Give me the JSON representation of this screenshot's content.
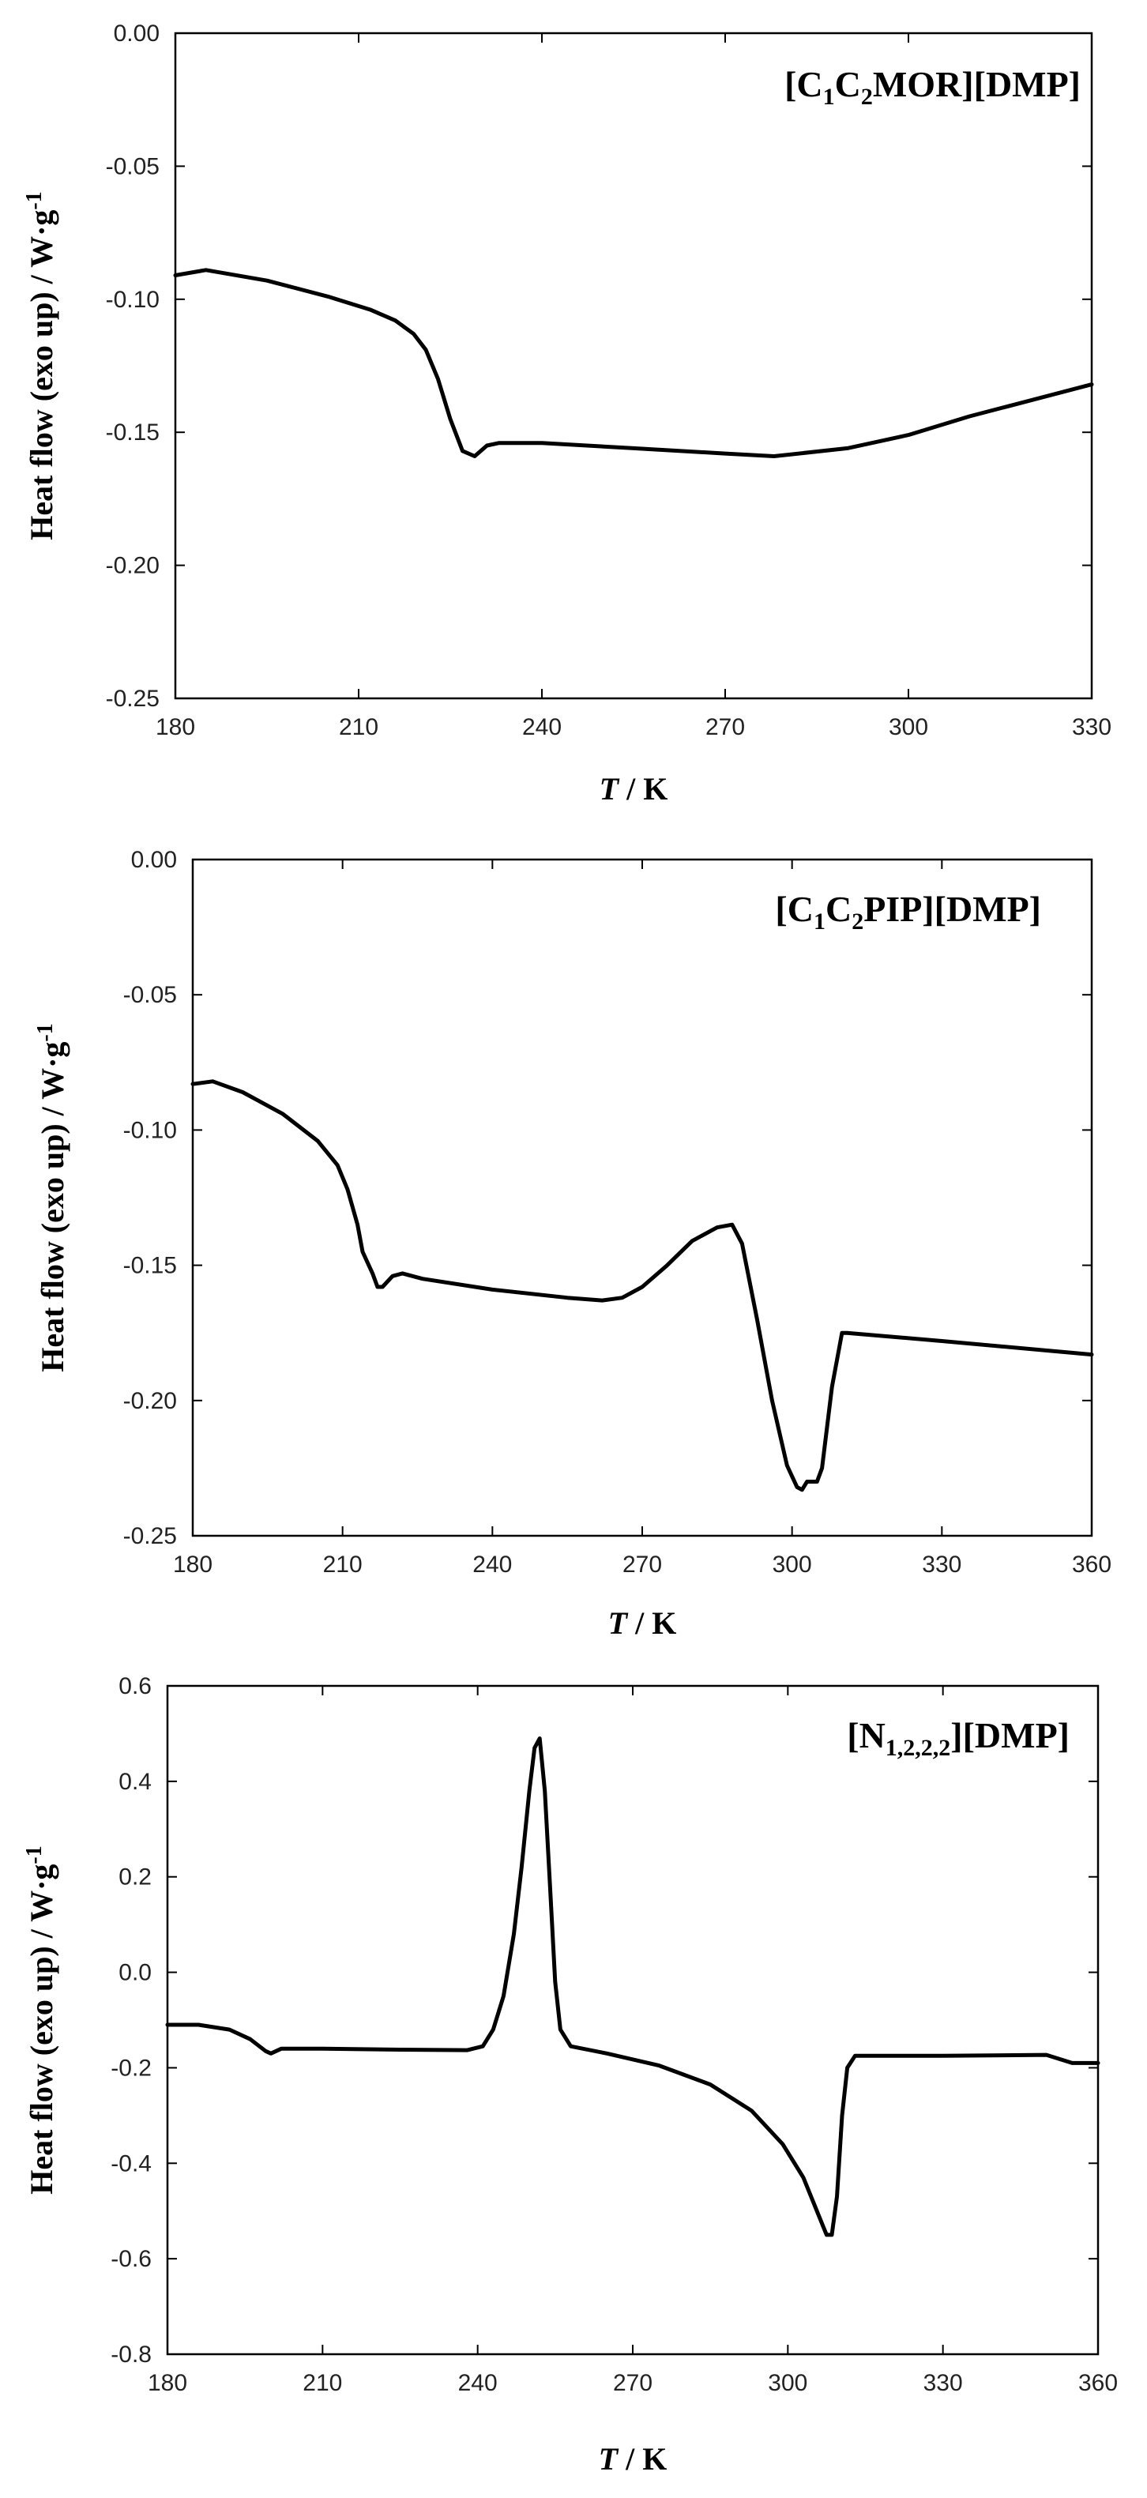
{
  "chart_data": [
    {
      "type": "line",
      "title_parts": [
        {
          "text": "[C",
          "sub": false
        },
        {
          "text": "1",
          "sub": true
        },
        {
          "text": "C",
          "sub": false
        },
        {
          "text": "2",
          "sub": true
        },
        {
          "text": "MOR][DMP]",
          "sub": false
        }
      ],
      "xlabel_italic": "T",
      "xlabel_rest": " / K",
      "ylabel_main": "Heat flow (exo up) / W·g",
      "ylabel_sup": "-1",
      "xlim": [
        180,
        330
      ],
      "ylim": [
        -0.25,
        0.0
      ],
      "xticks": [
        180,
        210,
        240,
        270,
        300,
        330
      ],
      "xtick_labels": [
        "180",
        "210",
        "240",
        "270",
        "300",
        "330"
      ],
      "yticks": [
        0.0,
        -0.05,
        -0.1,
        -0.15,
        -0.2,
        -0.25
      ],
      "ytick_labels": [
        "0.00",
        "-0.05",
        "-0.10",
        "-0.15",
        "-0.20",
        "-0.25"
      ],
      "grid": false,
      "series": [
        {
          "x": [
            180,
            185,
            195,
            205,
            212,
            216,
            219,
            221,
            223,
            225,
            227,
            229,
            231,
            233,
            240,
            255,
            270,
            278,
            290,
            300,
            310,
            320,
            330
          ],
          "y": [
            -0.091,
            -0.089,
            -0.093,
            -0.099,
            -0.104,
            -0.108,
            -0.113,
            -0.119,
            -0.13,
            -0.145,
            -0.157,
            -0.159,
            -0.155,
            -0.154,
            -0.154,
            -0.156,
            -0.158,
            -0.159,
            -0.156,
            -0.151,
            -0.144,
            -0.138,
            -0.132
          ]
        }
      ]
    },
    {
      "type": "line",
      "title_parts": [
        {
          "text": "[C",
          "sub": false
        },
        {
          "text": "1",
          "sub": true
        },
        {
          "text": "C",
          "sub": false
        },
        {
          "text": "2",
          "sub": true
        },
        {
          "text": "PIP][DMP]",
          "sub": false
        }
      ],
      "xlabel_italic": "T",
      "xlabel_rest": " / K",
      "ylabel_main": "Heat flow (exo up) / W·g",
      "ylabel_sup": "-1",
      "xlim": [
        180,
        360
      ],
      "ylim": [
        -0.25,
        0.0
      ],
      "xticks": [
        180,
        210,
        240,
        270,
        300,
        330,
        360
      ],
      "xtick_labels": [
        "180",
        "210",
        "240",
        "270",
        "300",
        "330",
        "360"
      ],
      "yticks": [
        0.0,
        -0.05,
        -0.1,
        -0.15,
        -0.2,
        -0.25
      ],
      "ytick_labels": [
        "0.00",
        "-0.05",
        "-0.10",
        "-0.15",
        "-0.20",
        "-0.25"
      ],
      "grid": false,
      "series": [
        {
          "x": [
            180,
            184,
            190,
            198,
            205,
            209,
            211,
            213,
            214,
            216,
            217,
            218,
            220,
            222,
            226,
            240,
            255,
            262,
            266,
            270,
            275,
            280,
            285,
            288,
            290,
            293,
            296,
            299,
            301,
            302,
            303,
            305,
            306,
            308,
            310,
            311,
            330,
            360
          ],
          "y": [
            -0.083,
            -0.082,
            -0.086,
            -0.094,
            -0.104,
            -0.113,
            -0.122,
            -0.135,
            -0.145,
            -0.153,
            -0.158,
            -0.158,
            -0.154,
            -0.153,
            -0.155,
            -0.159,
            -0.162,
            -0.163,
            -0.162,
            -0.158,
            -0.15,
            -0.141,
            -0.136,
            -0.135,
            -0.142,
            -0.17,
            -0.2,
            -0.224,
            -0.232,
            -0.233,
            -0.23,
            -0.23,
            -0.225,
            -0.195,
            -0.175,
            -0.175,
            -0.178,
            -0.183
          ]
        }
      ]
    },
    {
      "type": "line",
      "title_parts": [
        {
          "text": "[N",
          "sub": false
        },
        {
          "text": "1,2,2,2",
          "sub": true
        },
        {
          "text": "][DMP]",
          "sub": false
        }
      ],
      "xlabel_italic": "T",
      "xlabel_rest": " / K",
      "ylabel_main": "Heat flow (exo up) / W·g",
      "ylabel_sup": "-1",
      "xlim": [
        180,
        360
      ],
      "ylim": [
        -0.8,
        0.6
      ],
      "xticks": [
        180,
        210,
        240,
        270,
        300,
        330,
        360
      ],
      "xtick_labels": [
        "180",
        "210",
        "240",
        "270",
        "300",
        "330",
        "360"
      ],
      "yticks": [
        0.6,
        0.4,
        0.2,
        0.0,
        -0.2,
        -0.4,
        -0.6,
        -0.8
      ],
      "ytick_labels": [
        "0.6",
        "0.4",
        "0.2",
        "0.0",
        "-0.2",
        "-0.4",
        "-0.6",
        "-0.8"
      ],
      "grid": false,
      "series": [
        {
          "x": [
            180,
            186,
            192,
            196,
            199,
            200,
            202,
            210,
            225,
            238,
            241,
            243,
            245,
            247,
            248.5,
            250,
            251,
            252,
            253,
            254,
            255,
            256,
            258,
            265,
            275,
            285,
            293,
            299,
            303,
            306,
            307.5,
            308.5,
            309.5,
            310.5,
            311.5,
            313,
            330,
            350,
            355,
            360
          ],
          "y": [
            -0.11,
            -0.11,
            -0.12,
            -0.14,
            -0.165,
            -0.17,
            -0.16,
            -0.16,
            -0.162,
            -0.163,
            -0.155,
            -0.12,
            -0.05,
            0.08,
            0.22,
            0.38,
            0.47,
            0.49,
            0.38,
            0.18,
            -0.02,
            -0.12,
            -0.155,
            -0.17,
            -0.195,
            -0.235,
            -0.29,
            -0.36,
            -0.43,
            -0.51,
            -0.55,
            -0.55,
            -0.47,
            -0.3,
            -0.2,
            -0.175,
            -0.175,
            -0.173,
            -0.19,
            -0.19
          ]
        }
      ]
    }
  ]
}
